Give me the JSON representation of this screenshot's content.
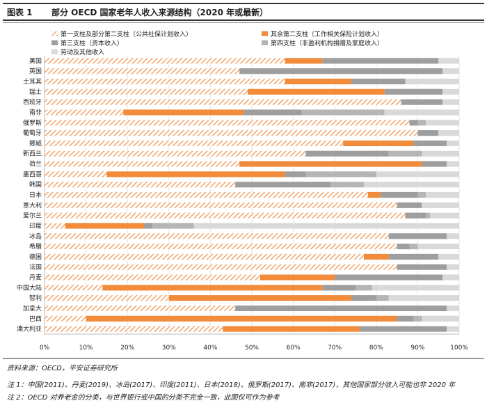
{
  "figure": {
    "label": "图表 1",
    "title": "部分 OECD 国家老年人收入来源结构（2020 年或最新）"
  },
  "footer": {
    "source": "资料来源：OECD，平安证券研究所",
    "note1": "注 1：中国(2011)、丹麦(2019)、冰岛(2017)、印度(2011)、日本(2018)、俄罗斯(2017)、南非(2017)，其他国家部分收入可能也非 2020 年",
    "note2": "注 2：OECD 对养老金的分类，与世界银行或中国的分类不完全一致，此图仅可作为参考"
  },
  "colors": {
    "pillar1": "#f4a36a",
    "pillar2": "#f28b3a",
    "pillar3": "#9e9e9e",
    "pillar4": "#b5b5b5",
    "labor": "#d9d9d9"
  },
  "chart_data": {
    "type": "bar",
    "orientation": "horizontal",
    "stacked": true,
    "xlim": [
      0,
      100
    ],
    "x_ticks": [
      "0%",
      "10%",
      "20%",
      "30%",
      "40%",
      "50%",
      "60%",
      "70%",
      "80%",
      "90%",
      "100%"
    ],
    "legend_position": "top",
    "categories": [
      "美国",
      "英国",
      "土耳其",
      "瑞士",
      "西班牙",
      "南非",
      "俄罗斯",
      "葡萄牙",
      "挪威",
      "新西兰",
      "荷兰",
      "墨西哥",
      "韩国",
      "日本",
      "意大利",
      "爱尔兰",
      "印度",
      "冰岛",
      "希腊",
      "德国",
      "法国",
      "丹麦",
      "中国大陆",
      "智利",
      "加拿大",
      "巴西",
      "澳大利亚"
    ],
    "series": [
      {
        "name": "第一支柱及部分第二支柱（公共社保计划收入）",
        "color_key": "pillar1",
        "pattern": "hatch",
        "values": [
          58,
          47,
          58,
          49,
          86,
          19,
          88,
          90,
          72,
          63,
          47,
          15,
          46,
          78,
          85,
          87,
          5,
          83,
          85,
          77,
          85,
          52,
          14,
          30,
          46,
          10,
          43
        ]
      },
      {
        "name": "其余第二支柱（工作相关保险计划收入）",
        "color_key": "pillar2",
        "values": [
          9,
          0,
          16,
          33,
          0,
          29,
          0,
          0,
          17,
          0,
          44,
          43,
          0,
          3,
          0,
          0,
          19,
          0,
          0,
          6,
          0,
          18,
          53,
          44,
          0,
          75,
          33
        ]
      },
      {
        "name": "第三支柱（资本收入）",
        "color_key": "pillar3",
        "values": [
          28,
          49,
          13,
          14,
          10,
          14,
          2,
          5,
          8,
          20,
          6,
          5,
          23,
          9,
          6,
          5,
          2,
          14,
          3,
          12,
          12,
          26,
          8,
          6,
          51,
          4,
          21
        ]
      },
      {
        "name": "第四支柱（非盈利机构捐赠及家庭收入）",
        "color_key": "pillar4",
        "values": [
          0,
          0,
          0,
          0,
          0,
          20,
          2,
          0,
          0,
          8,
          0,
          17,
          8,
          2,
          0,
          1,
          10,
          0,
          2,
          0,
          0,
          0,
          4,
          3,
          0,
          2,
          0
        ]
      },
      {
        "name": "劳动及其他收入",
        "color_key": "labor",
        "values": [
          5,
          4,
          13,
          4,
          4,
          18,
          8,
          5,
          3,
          9,
          3,
          20,
          23,
          8,
          9,
          7,
          64,
          3,
          10,
          5,
          3,
          4,
          21,
          17,
          3,
          9,
          3
        ]
      }
    ]
  }
}
